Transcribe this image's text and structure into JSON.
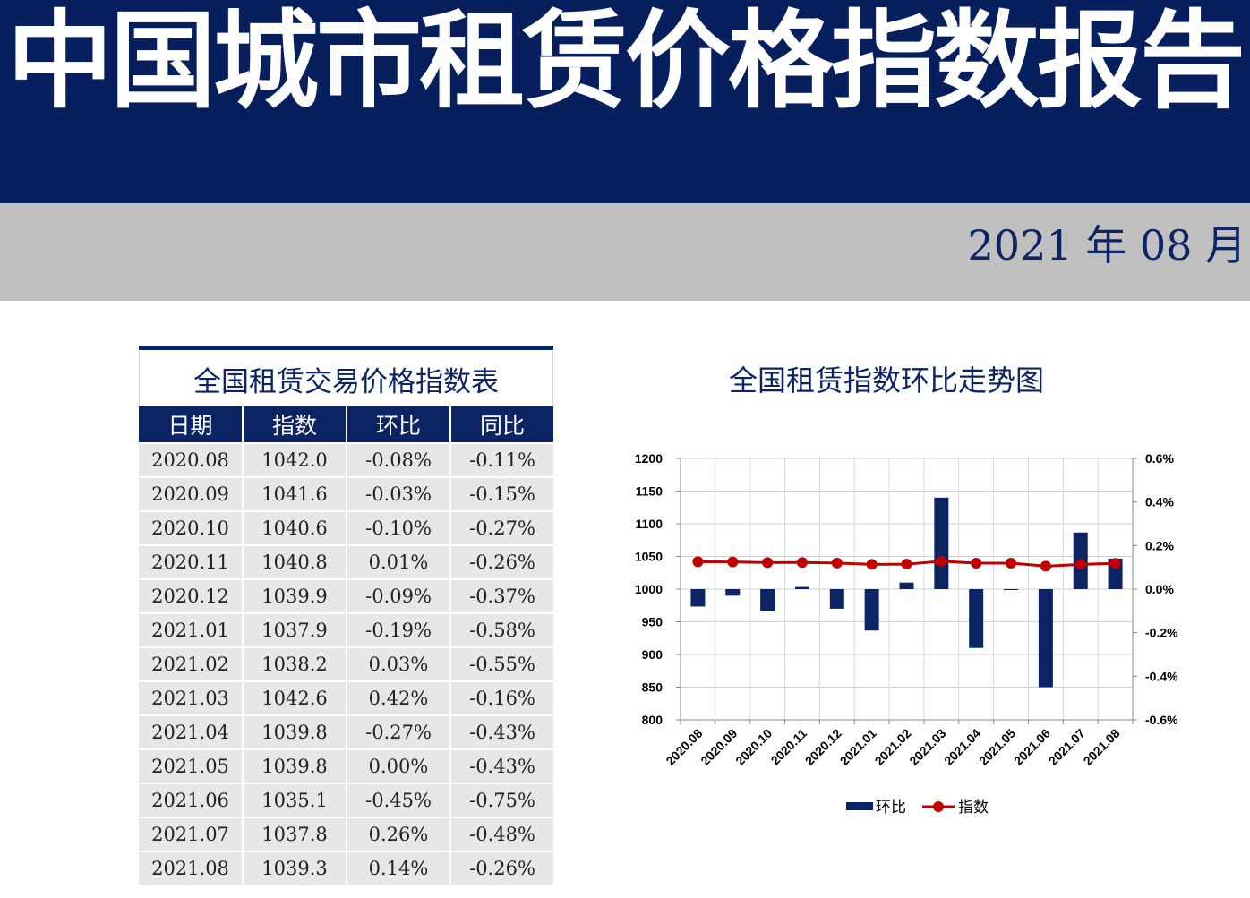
{
  "header": {
    "title": "中国城市租赁价格指数报告",
    "date": "2021 年 08 月"
  },
  "table": {
    "title": "全国租赁交易价格指数表",
    "headers": [
      "日期",
      "指数",
      "环比",
      "同比"
    ],
    "rows": [
      [
        "2020.08",
        "1042.0",
        "-0.08%",
        "-0.11%"
      ],
      [
        "2020.09",
        "1041.6",
        "-0.03%",
        "-0.15%"
      ],
      [
        "2020.10",
        "1040.6",
        "-0.10%",
        "-0.27%"
      ],
      [
        "2020.11",
        "1040.8",
        "0.01%",
        "-0.26%"
      ],
      [
        "2020.12",
        "1039.9",
        "-0.09%",
        "-0.37%"
      ],
      [
        "2021.01",
        "1037.9",
        "-0.19%",
        "-0.58%"
      ],
      [
        "2021.02",
        "1038.2",
        "0.03%",
        "-0.55%"
      ],
      [
        "2021.03",
        "1042.6",
        "0.42%",
        "-0.16%"
      ],
      [
        "2021.04",
        "1039.8",
        "-0.27%",
        "-0.43%"
      ],
      [
        "2021.05",
        "1039.8",
        "0.00%",
        "-0.43%"
      ],
      [
        "2021.06",
        "1035.1",
        "-0.45%",
        "-0.75%"
      ],
      [
        "2021.07",
        "1037.8",
        "0.26%",
        "-0.48%"
      ],
      [
        "2021.08",
        "1039.3",
        "0.14%",
        "-0.26%"
      ]
    ]
  },
  "chart_data": {
    "type": "bar+line",
    "title": "全国租赁指数环比走势图",
    "categories": [
      "2020.08",
      "2020.09",
      "2020.10",
      "2020.11",
      "2020.12",
      "2021.01",
      "2021.02",
      "2021.03",
      "2021.04",
      "2021.05",
      "2021.06",
      "2021.07",
      "2021.08"
    ],
    "series": [
      {
        "name": "环比",
        "type": "bar",
        "axis": "right",
        "color": "#0c2464",
        "values": [
          -0.08,
          -0.03,
          -0.1,
          0.01,
          -0.09,
          -0.19,
          0.03,
          0.42,
          -0.27,
          0.0,
          -0.45,
          0.26,
          0.14
        ]
      },
      {
        "name": "指数",
        "type": "line",
        "axis": "left",
        "color": "#c00000",
        "values": [
          1042.0,
          1041.6,
          1040.6,
          1040.8,
          1039.9,
          1037.9,
          1038.2,
          1042.6,
          1039.8,
          1039.8,
          1035.1,
          1037.8,
          1039.3
        ]
      }
    ],
    "y_left": {
      "min": 800,
      "max": 1200,
      "step": 50,
      "ticks": [
        "800",
        "850",
        "900",
        "950",
        "1000",
        "1050",
        "1100",
        "1150",
        "1200"
      ]
    },
    "y_right": {
      "min": -0.6,
      "max": 0.6,
      "step": 0.2,
      "ticks": [
        "-0.6%",
        "-0.4%",
        "-0.2%",
        "0.0%",
        "0.2%",
        "0.4%",
        "0.6%"
      ]
    },
    "legend": {
      "position": "bottom",
      "items": [
        "环比",
        "指数"
      ]
    },
    "grid": true
  }
}
